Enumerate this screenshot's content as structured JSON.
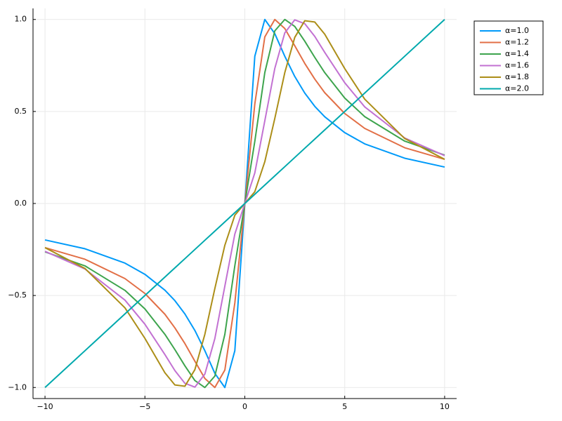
{
  "chart_data": {
    "type": "line",
    "x": [
      -10,
      -8,
      -6,
      -5,
      -4,
      -3.5,
      -3,
      -2.5,
      -2,
      -1.5,
      -1,
      -0.5,
      0,
      0.5,
      1,
      1.5,
      2,
      2.5,
      3,
      3.5,
      4,
      5,
      6,
      8,
      10
    ],
    "series": [
      {
        "name": "α=1.0",
        "color": "#009af9",
        "values": [
          -0.198,
          -0.246,
          -0.324,
          -0.385,
          -0.471,
          -0.528,
          -0.6,
          -0.69,
          -0.8,
          -0.923,
          -1,
          -0.8,
          0,
          0.8,
          1,
          0.923,
          0.8,
          0.69,
          0.6,
          0.528,
          0.471,
          0.385,
          0.324,
          0.246,
          0.198
        ]
      },
      {
        "name": "α=1.2",
        "color": "#e26f46",
        "values": [
          -0.24,
          -0.303,
          -0.408,
          -0.489,
          -0.602,
          -0.676,
          -0.761,
          -0.857,
          -0.951,
          -1,
          -0.905,
          -0.541,
          0,
          0.541,
          0.905,
          1,
          0.951,
          0.857,
          0.761,
          0.676,
          0.602,
          0.489,
          0.408,
          0.303,
          0.24
        ]
      },
      {
        "name": "α=1.4",
        "color": "#3da44d",
        "values": [
          -0.263,
          -0.339,
          -0.472,
          -0.573,
          -0.711,
          -0.794,
          -0.882,
          -0.962,
          -1,
          -0.938,
          -0.711,
          -0.338,
          0,
          0.338,
          0.711,
          0.938,
          1,
          0.962,
          0.882,
          0.794,
          0.711,
          0.573,
          0.472,
          0.339,
          0.263
        ]
      },
      {
        "name": "α=1.6",
        "color": "#c271d2",
        "values": [
          -0.26,
          -0.356,
          -0.525,
          -0.656,
          -0.821,
          -0.908,
          -0.977,
          -0.998,
          -0.927,
          -0.734,
          -0.449,
          -0.166,
          0,
          0.166,
          0.449,
          0.734,
          0.927,
          0.998,
          0.977,
          0.908,
          0.821,
          0.656,
          0.525,
          0.356,
          0.26
        ]
      },
      {
        "name": "α=1.8",
        "color": "#ac8e18",
        "values": [
          -0.24,
          -0.353,
          -0.567,
          -0.733,
          -0.92,
          -0.986,
          -0.993,
          -0.903,
          -0.711,
          -0.462,
          -0.227,
          -0.064,
          0,
          0.064,
          0.227,
          0.462,
          0.711,
          0.903,
          0.993,
          0.986,
          0.92,
          0.733,
          0.567,
          0.353,
          0.24
        ]
      },
      {
        "name": "α=2.0",
        "color": "#00a9ad",
        "values": [
          -1,
          -0.8,
          -0.6,
          -0.5,
          -0.4,
          -0.35,
          -0.3,
          -0.25,
          -0.2,
          -0.15,
          -0.1,
          -0.05,
          0,
          0.05,
          0.1,
          0.15,
          0.2,
          0.25,
          0.3,
          0.35,
          0.4,
          0.5,
          0.6,
          0.8,
          1
        ]
      }
    ],
    "xlim": [
      -10.6,
      10.6
    ],
    "ylim": [
      -1.06,
      1.06
    ],
    "xticks": [
      {
        "value": -10,
        "label": "−10"
      },
      {
        "value": -5,
        "label": "−5"
      },
      0,
      5,
      10
    ],
    "yticks": [
      {
        "value": -1,
        "label": "−1.0"
      },
      {
        "value": -0.5,
        "label": "−0.5"
      },
      {
        "value": 0,
        "label": "0.0"
      },
      {
        "value": 0.5,
        "label": "0.5"
      },
      {
        "value": 1,
        "label": "1.0"
      }
    ],
    "grid": true,
    "legend": "top-right"
  }
}
